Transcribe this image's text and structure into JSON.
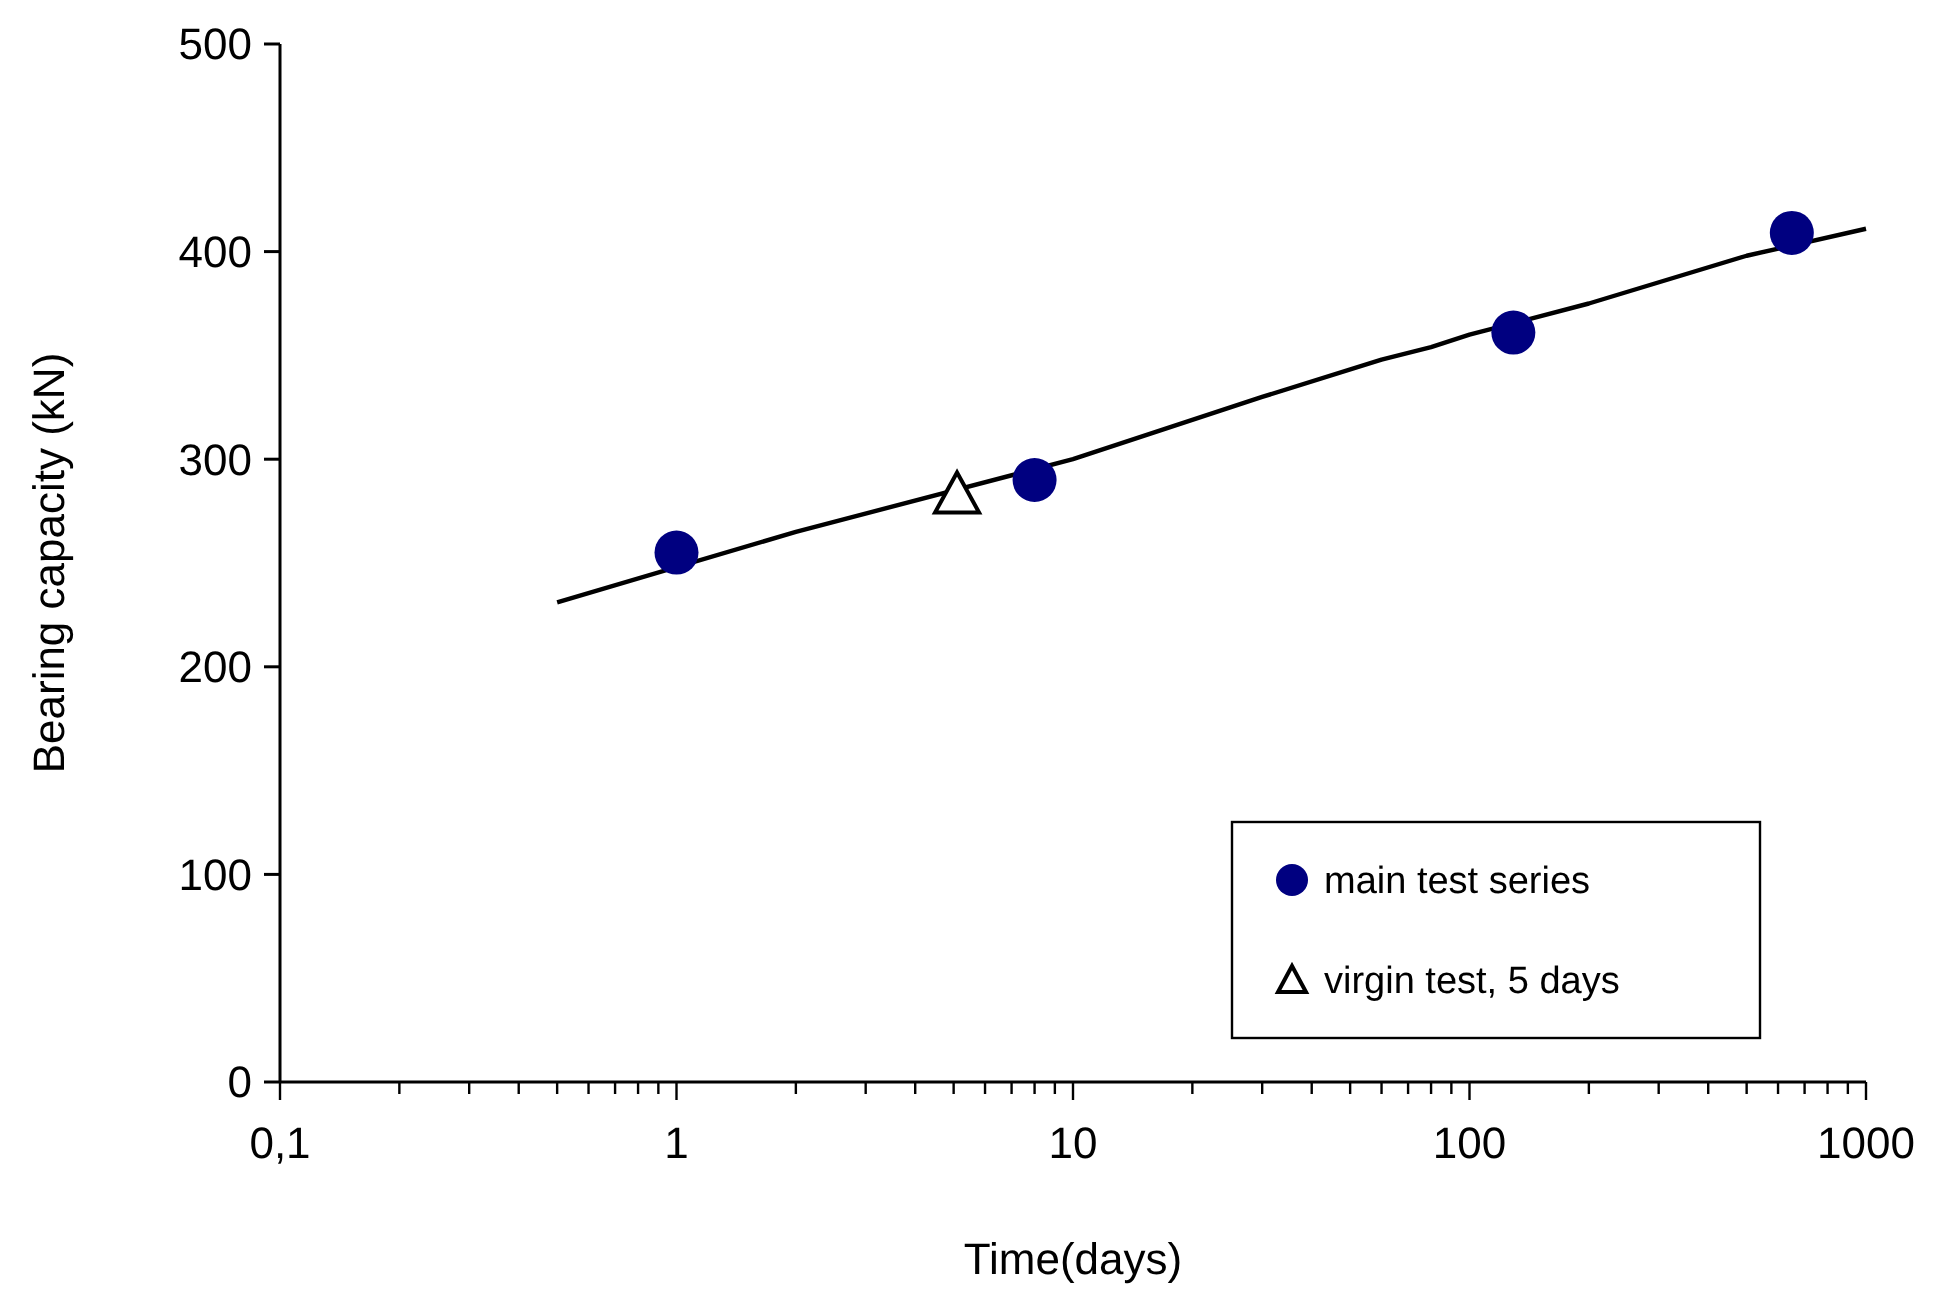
{
  "chart_data": {
    "type": "scatter",
    "xlabel": "Time(days)",
    "ylabel": "Bearing capacity (kN)",
    "log": "x",
    "grid": false,
    "legend": "bottom right",
    "xlim": [
      0.1,
      1000
    ],
    "xticks": [
      {
        "value": 0.1,
        "label": "0,1"
      },
      {
        "value": 0.2,
        "label": null
      },
      {
        "value": 0.3,
        "label": null
      },
      {
        "value": 0.4,
        "label": null
      },
      {
        "value": 0.5,
        "label": null
      },
      {
        "value": 0.6,
        "label": null
      },
      {
        "value": 0.7,
        "label": null
      },
      {
        "value": 0.8,
        "label": null
      },
      {
        "value": 0.9,
        "label": null
      },
      1,
      {
        "value": 2,
        "label": null
      },
      {
        "value": 3,
        "label": null
      },
      {
        "value": 4,
        "label": null
      },
      {
        "value": 5,
        "label": null
      },
      {
        "value": 6,
        "label": null
      },
      {
        "value": 7,
        "label": null
      },
      {
        "value": 8,
        "label": null
      },
      {
        "value": 9,
        "label": null
      },
      10,
      {
        "value": 20,
        "label": null
      },
      {
        "value": 30,
        "label": null
      },
      {
        "value": 40,
        "label": null
      },
      {
        "value": 50,
        "label": null
      },
      {
        "value": 60,
        "label": null
      },
      {
        "value": 70,
        "label": null
      },
      {
        "value": 80,
        "label": null
      },
      {
        "value": 90,
        "label": null
      },
      100,
      {
        "value": 200,
        "label": null
      },
      {
        "value": 300,
        "label": null
      },
      {
        "value": 400,
        "label": null
      },
      {
        "value": 500,
        "label": null
      },
      {
        "value": 600,
        "label": null
      },
      {
        "value": 700,
        "label": null
      },
      {
        "value": 800,
        "label": null
      },
      {
        "value": 900,
        "label": null
      },
      1000
    ],
    "ylim": [
      0,
      500
    ],
    "yticks": [
      0,
      100,
      200,
      300,
      400,
      500
    ],
    "series": [
      {
        "type": "line",
        "color": "#000000",
        "marker": "none",
        "x": [
          0.5,
          2,
          10,
          30,
          60,
          80,
          100,
          200,
          500,
          1000
        ],
        "values": [
          231,
          265,
          300,
          330,
          348,
          354,
          360,
          375,
          398,
          411
        ]
      },
      {
        "name": "main test series",
        "color": "#000080",
        "marker": "circle",
        "x": [
          1,
          8,
          129,
          650
        ],
        "values": [
          255,
          290,
          361,
          409
        ]
      },
      {
        "name": "virgin test, 5 days",
        "color": "#000000",
        "marker": "triangle",
        "x": [
          5.1
        ],
        "values": [
          283
        ]
      }
    ]
  }
}
